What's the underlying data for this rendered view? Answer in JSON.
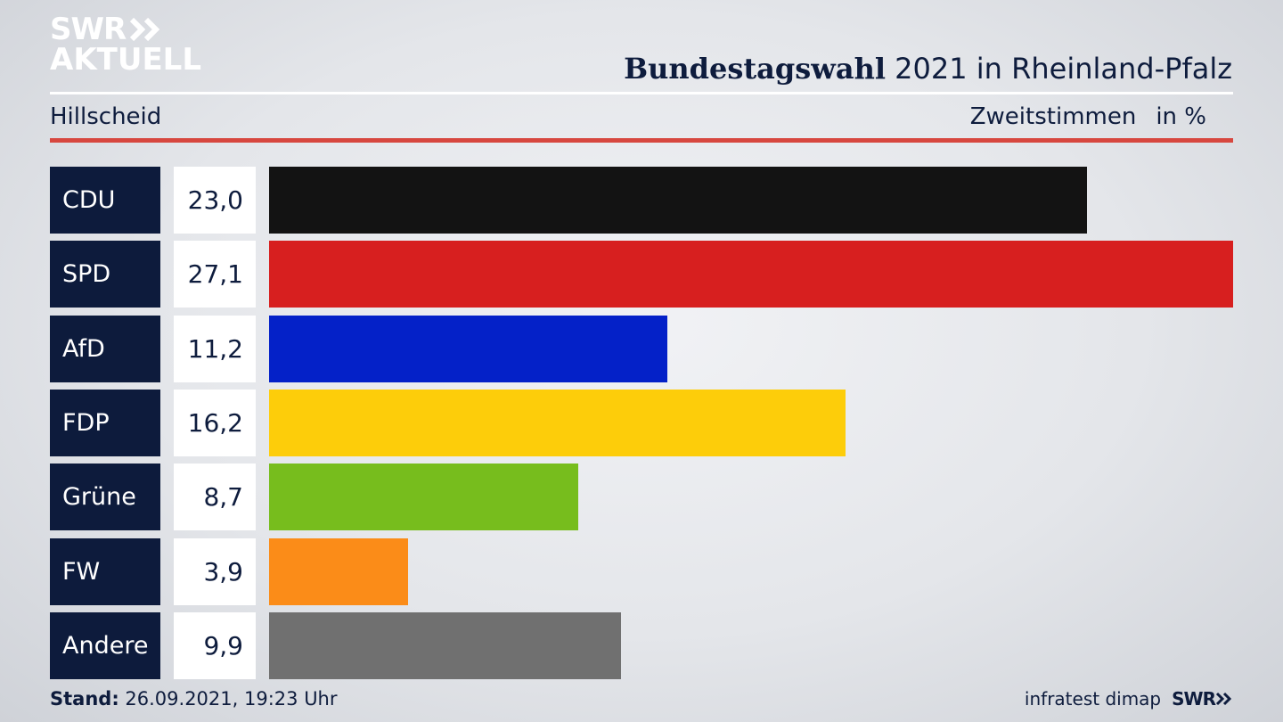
{
  "logo": {
    "line1": "SWR",
    "line2": "AKTUELL",
    "brand_color": "#ffffff"
  },
  "header": {
    "title_bold": "Bundestagswahl",
    "title_rest": "2021 in Rheinland-Pfalz",
    "location": "Hillscheid",
    "measure": "Zweitstimmen",
    "unit": "in %"
  },
  "chart_data": {
    "type": "bar",
    "orientation": "horizontal",
    "categories": [
      "CDU",
      "SPD",
      "AfD",
      "FDP",
      "Grüne",
      "FW",
      "Andere"
    ],
    "values": [
      23.0,
      27.1,
      11.2,
      16.2,
      8.7,
      3.9,
      9.9
    ],
    "value_labels": [
      "23,0",
      "27,1",
      "11,2",
      "16,2",
      "8,7",
      "3,9",
      "9,9"
    ],
    "colors": [
      "#131313",
      "#d71f1f",
      "#0421c8",
      "#fdcd0a",
      "#77bd1d",
      "#fb8c18",
      "#707070"
    ],
    "xlim": [
      0,
      27.1
    ],
    "grid": false
  },
  "footer": {
    "stand_label": "Stand:",
    "stand_value": "26.09.2021, 19:23 Uhr",
    "source": "infratest dimap",
    "brand": "SWR"
  }
}
